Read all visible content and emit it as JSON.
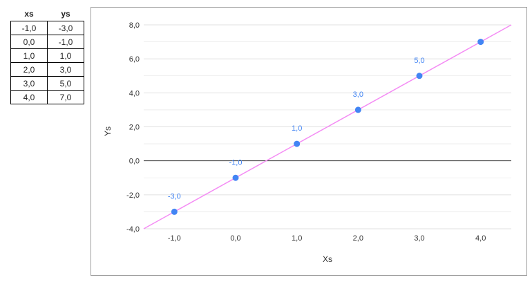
{
  "table": {
    "headers": [
      "xs",
      "ys"
    ],
    "rows": [
      [
        "-1,0",
        "-3,0"
      ],
      [
        "0,0",
        "-1,0"
      ],
      [
        "1,0",
        "1,0"
      ],
      [
        "2,0",
        "3,0"
      ],
      [
        "3,0",
        "5,0"
      ],
      [
        "4,0",
        "7,0"
      ]
    ]
  },
  "chart_data": {
    "type": "scatter",
    "title": "",
    "xlabel": "Xs",
    "ylabel": "Ys",
    "x": [
      -1,
      0,
      1,
      2,
      3,
      4
    ],
    "y": [
      -3,
      -1,
      1,
      3,
      5,
      7
    ],
    "point_labels": [
      "-3,0",
      "-1,0",
      "1,0",
      "3,0",
      "5,0",
      ""
    ],
    "xticks": [
      "-1,0",
      "0,0",
      "1,0",
      "2,0",
      "3,0",
      "4,0"
    ],
    "yticks": [
      "-4,0",
      "-2,0",
      "0,0",
      "2,0",
      "4,0",
      "6,0",
      "8,0"
    ],
    "xlim": [
      -1.5,
      4.5
    ],
    "ylim": [
      -4,
      8
    ],
    "trendline": {
      "slope": 2,
      "intercept": -1
    },
    "grid": true,
    "colors": {
      "points": "#4285f4",
      "labels": "#4285f4",
      "trendline": "#f48cf4",
      "gridline": "#e0e0e0",
      "zeroline": "#333333"
    }
  }
}
